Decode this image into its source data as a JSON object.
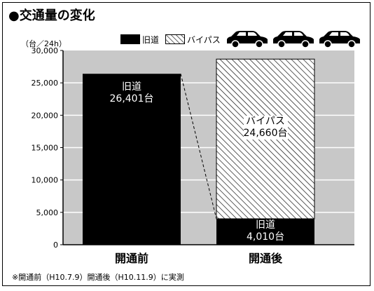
{
  "title": "●交通量の変化",
  "unit_label": "（台／24h）",
  "legend": {
    "old_road": "旧道",
    "bypass": "バイパス"
  },
  "icons": [
    "car-icon",
    "car-icon",
    "car-icon"
  ],
  "footnote": "※開通前（H10.7.9）開通後（H10.11.9）に実測",
  "colors": {
    "plot_background": "#c8c8c8",
    "gridline": "#ffffff",
    "old_road": "#000000",
    "bypass_fill": "#ffffff",
    "bypass_hatch": "#000000"
  },
  "chart_data": {
    "type": "bar",
    "stacked": true,
    "categories": [
      "開通前",
      "開通後"
    ],
    "ylim": [
      0,
      30000
    ],
    "yticks": [
      "0",
      "5,000",
      "10,000",
      "15,000",
      "20,000",
      "25,000",
      "30,000"
    ],
    "grid": true,
    "legend_position": "top-right",
    "series": [
      {
        "name": "旧道",
        "values": [
          26401,
          4010
        ]
      },
      {
        "name": "バイパス",
        "values": [
          0,
          24660
        ]
      }
    ],
    "data_labels": {
      "before_old_name": "旧道",
      "before_old_value": "26,401台",
      "after_bypass_name": "バイパス",
      "after_bypass_value": "24,660台",
      "after_old_name": "旧道",
      "after_old_value": "4,010台"
    }
  }
}
